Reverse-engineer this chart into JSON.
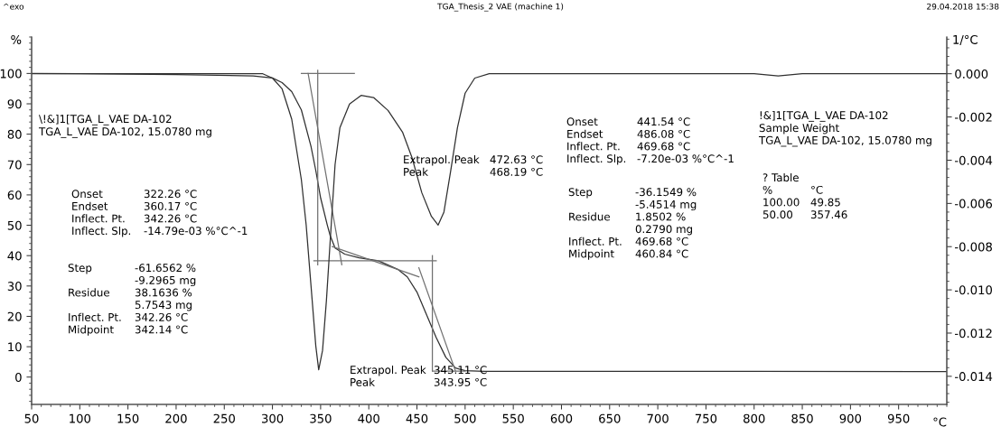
{
  "chart_data": {
    "type": "line",
    "title": "TGA_Thesis_2 VAE (machine 1)",
    "xlim": [
      50,
      1000
    ],
    "ylim": [
      -9,
      112
    ],
    "y2lim": [
      -0.0153,
      0.0017
    ],
    "xlabel": "°C",
    "ylabel": "%",
    "y2label": "1/°C",
    "xticks": [
      50,
      100,
      150,
      200,
      250,
      300,
      350,
      400,
      450,
      500,
      550,
      600,
      650,
      700,
      750,
      800,
      850,
      900,
      950
    ],
    "yticks": [
      0,
      10,
      20,
      30,
      40,
      50,
      60,
      70,
      80,
      90,
      100
    ],
    "y2ticks": [
      {
        "value": -0.014,
        "label": "-0.014"
      },
      {
        "value": -0.012,
        "label": "-0.012"
      },
      {
        "value": -0.01,
        "label": "-0.010"
      },
      {
        "value": -0.008,
        "label": "-0.008"
      },
      {
        "value": -0.006,
        "label": "-0.006"
      },
      {
        "value": -0.004,
        "label": "-0.004"
      },
      {
        "value": -0.002,
        "label": "-0.002"
      },
      {
        "value": 0,
        "label": "0.000"
      }
    ],
    "grid": false,
    "series": [
      {
        "color": "#303030",
        "x": [
          50,
          100,
          200,
          280,
          300,
          310,
          320,
          330,
          340,
          345,
          350,
          357,
          360,
          365,
          375,
          390,
          410,
          430,
          440,
          450,
          460,
          470,
          480,
          490,
          500,
          520,
          600,
          800,
          1000
        ],
        "values": [
          100,
          99.9,
          99.6,
          99.2,
          98.5,
          97,
          94,
          88,
          76,
          68,
          59,
          50,
          46.5,
          42.5,
          40.5,
          39.3,
          38.3,
          35.5,
          33,
          28,
          20.5,
          13,
          6.5,
          3,
          2.1,
          1.9,
          1.9,
          1.9,
          1.8
        ]
      },
      {
        "color": "#303030",
        "axis": "y2",
        "x": [
          50,
          290,
          300,
          310,
          320,
          330,
          335,
          340,
          345,
          348,
          352,
          356,
          360,
          365,
          370,
          380,
          392,
          405,
          420,
          435,
          445,
          455,
          465,
          472,
          478,
          485,
          492,
          500,
          510,
          525,
          800,
          825,
          850,
          1000
        ],
        "values": [
          0,
          0,
          -0.0002,
          -0.0007,
          -0.0021,
          -0.0049,
          -0.007,
          -0.0098,
          -0.0126,
          -0.0137,
          -0.0128,
          -0.0105,
          -0.0077,
          -0.0042,
          -0.0025,
          -0.0014,
          -0.001,
          -0.0011,
          -0.0017,
          -0.0027,
          -0.0039,
          -0.0055,
          -0.0066,
          -0.007,
          -0.0064,
          -0.0045,
          -0.0025,
          -0.0009,
          -0.0002,
          0,
          0,
          -0.0001,
          0,
          0
        ]
      },
      {
        "color": "#707070",
        "x": [
          330,
          385
        ],
        "values": [
          100,
          100
        ]
      },
      {
        "color": "#707070",
        "x": [
          347,
          347
        ],
        "values": [
          101,
          37
        ]
      },
      {
        "color": "#707070",
        "x": [
          337,
          372
        ],
        "values": [
          100,
          37
        ]
      },
      {
        "color": "#707070",
        "x": [
          343,
          470
        ],
        "values": [
          38.3,
          38.3
        ]
      },
      {
        "color": "#707070",
        "x": [
          362,
          452
        ],
        "values": [
          43,
          33
        ]
      },
      {
        "color": "#707070",
        "x": [
          466,
          466
        ],
        "values": [
          40,
          2
        ]
      },
      {
        "color": "#707070",
        "x": [
          452,
          490
        ],
        "values": [
          36,
          2
        ]
      },
      {
        "color": "#707070",
        "x": [
          466,
          500
        ],
        "values": [
          2,
          2
        ]
      }
    ],
    "annotations": [
      "^exo",
      "29.04.2018 15:38",
      "\\!&]1[TGA_L_VAE DA-102\nTGA_L_VAE DA-102, 15.0780 mg",
      "Onset\nEndset\nInflect. Pt.\nInflect. Slp.",
      "322.26 °C\n360.17 °C\n342.26 °C\n-14.79e-03 %°C^-1",
      "Step\n\nResidue\n\nInflect. Pt.\nMidpoint",
      "-61.6562 %\n-9.2965 mg\n38.1636 %\n5.7543 mg\n342.26 °C\n342.14 °C",
      "Extrapol. Peak\nPeak",
      "472.63 °C\n468.19 °C",
      "Onset\nEndset\nInflect. Pt.\nInflect. Slp.",
      "441.54 °C\n486.08 °C\n469.68 °C\n-7.20e-03 %°C^-1",
      "Step\n\nResidue\n\nInflect. Pt.\nMidpoint",
      "-36.1549 %\n-5.4514 mg\n1.8502 %\n0.2790 mg\n469.68 °C\n460.84 °C",
      "!&]1[TGA_L_VAE DA-102\nSample Weight\nTGA_L_VAE DA-102, 15.0780 mg",
      "? Table\n%\n100.00\n50.00",
      "\n°C\n49.85\n357.46",
      "Extrapol. Peak\nPeak",
      "345.11 °C\n343.95 °C"
    ]
  }
}
